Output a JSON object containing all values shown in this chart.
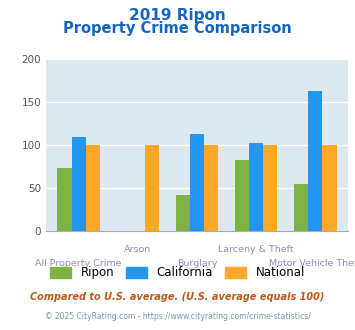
{
  "title_line1": "2019 Ripon",
  "title_line2": "Property Crime Comparison",
  "categories": [
    "All Property Crime",
    "Arson",
    "Burglary",
    "Larceny & Theft",
    "Motor Vehicle Theft"
  ],
  "ripon": [
    74,
    null,
    42,
    83,
    55
  ],
  "california": [
    110,
    null,
    113,
    103,
    163
  ],
  "national": [
    100,
    100,
    100,
    100,
    100
  ],
  "color_ripon": "#7cb342",
  "color_california": "#2196f3",
  "color_national": "#ffa726",
  "color_title": "#1565c0",
  "color_bg": "#dce9f0",
  "color_xlabel_top": "#9a8ab0",
  "color_xlabel_bot": "#9a8ab0",
  "ylim": [
    0,
    200
  ],
  "yticks": [
    0,
    50,
    100,
    150,
    200
  ],
  "footnote1": "Compared to U.S. average. (U.S. average equals 100)",
  "footnote2": "© 2025 CityRating.com - https://www.cityrating.com/crime-statistics/",
  "footnote1_color": "#c05818",
  "footnote2_color": "#7a9ab0"
}
